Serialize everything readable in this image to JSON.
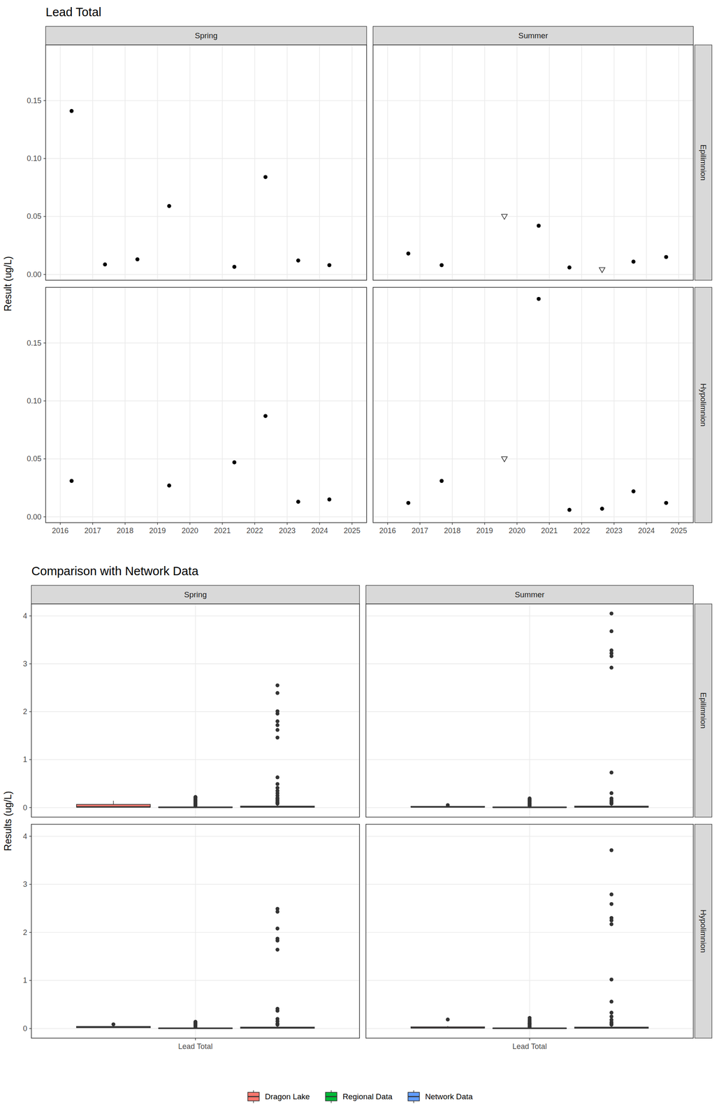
{
  "chart_data": [
    {
      "type": "scatter",
      "title": "Lead Total",
      "y_label": "Result (ug/L)",
      "columns": [
        "Spring",
        "Summer"
      ],
      "rows": [
        "Epilimnion",
        "Hypolimnion"
      ],
      "xlim": [
        2015.55,
        2025.45
      ],
      "xticks": [
        2016,
        2017,
        2018,
        2019,
        2020,
        2021,
        2022,
        2023,
        2024,
        2025
      ],
      "ylim": [
        -0.005,
        0.198
      ],
      "yticks": [
        {
          "value": 0,
          "label": "0.00"
        },
        {
          "value": 0.05,
          "label": "0.05"
        },
        {
          "value": 0.1,
          "label": "0.10"
        },
        {
          "value": 0.15,
          "label": "0.15"
        }
      ],
      "grid": true,
      "panels": [
        {
          "series": [
            {
              "marker": "circle",
              "color": "#000000",
              "x": [
                2016.35,
                2017.38,
                2018.38,
                2019.36,
                2021.37,
                2022.33,
                2023.34,
                2024.3
              ],
              "values": [
                0.141,
                0.0086,
                0.013,
                0.059,
                0.0065,
                0.084,
                0.012,
                0.008
              ]
            }
          ]
        },
        {
          "series": [
            {
              "marker": "circle",
              "color": "#000000",
              "x": [
                2016.64,
                2017.67,
                2020.67,
                2021.62,
                2023.6,
                2024.61
              ],
              "values": [
                0.018,
                0.008,
                0.042,
                0.006,
                0.011,
                0.015
              ]
            },
            {
              "marker": "triangle",
              "color": "#333333",
              "x": [
                2019.61,
                2022.63
              ],
              "values": [
                0.05,
                0.004
              ]
            }
          ]
        },
        {
          "series": [
            {
              "marker": "circle",
              "color": "#000000",
              "x": [
                2016.35,
                2019.36,
                2021.37,
                2022.33,
                2023.34,
                2024.3
              ],
              "values": [
                0.031,
                0.027,
                0.047,
                0.087,
                0.013,
                0.015
              ]
            }
          ]
        },
        {
          "series": [
            {
              "marker": "circle",
              "color": "#000000",
              "x": [
                2016.64,
                2017.67,
                2020.67,
                2021.62,
                2022.63,
                2023.6,
                2024.61
              ],
              "values": [
                0.012,
                0.031,
                0.188,
                0.006,
                0.007,
                0.022,
                0.012
              ]
            },
            {
              "marker": "triangle",
              "color": "#333333",
              "x": [
                2019.61
              ],
              "values": [
                0.05
              ]
            }
          ]
        }
      ]
    },
    {
      "type": "box",
      "title": "Comparison with Network Data",
      "y_label": "Results (ug/L)",
      "columns": [
        "Spring",
        "Summer"
      ],
      "rows": [
        "Epilimnion",
        "Hypolimnion"
      ],
      "categories": [
        "Lead Total"
      ],
      "ylim": [
        -0.2,
        4.25
      ],
      "yticks": [
        0,
        1,
        2,
        3,
        4
      ],
      "grid": true,
      "legend": "bottom",
      "series": [
        {
          "name": "Dragon Lake",
          "color": "#F8766D",
          "boxes": [
            {
              "min": 0.006,
              "q1": 0.0085,
              "median": 0.0125,
              "q3": 0.065,
              "max": 0.141,
              "outliers": []
            },
            {
              "min": 0.004,
              "q1": 0.0075,
              "median": 0.013,
              "q3": 0.024,
              "max": 0.042,
              "outliers": [
                0.05
              ]
            },
            {
              "min": 0.013,
              "q1": 0.018,
              "median": 0.029,
              "q3": 0.043,
              "max": 0.047,
              "outliers": [
                0.087
              ]
            },
            {
              "min": 0.006,
              "q1": 0.0105,
              "median": 0.017,
              "q3": 0.035,
              "max": 0.05,
              "outliers": [
                0.188
              ]
            }
          ]
        },
        {
          "name": "Regional Data",
          "color": "#00BA38",
          "boxes": [
            {
              "min": 0,
              "q1": 0.002,
              "median": 0.005,
              "q3": 0.01,
              "max": 0.022,
              "outliers": [
                0.03,
                0.05,
                0.07,
                0.09,
                0.11,
                0.13,
                0.15,
                0.17,
                0.19,
                0.21,
                0.22
              ]
            },
            {
              "min": 0,
              "q1": 0.002,
              "median": 0.005,
              "q3": 0.01,
              "max": 0.022,
              "outliers": [
                0.03,
                0.05,
                0.07,
                0.09,
                0.11,
                0.13,
                0.15,
                0.17,
                0.19
              ]
            },
            {
              "min": 0,
              "q1": 0.002,
              "median": 0.005,
              "q3": 0.01,
              "max": 0.022,
              "outliers": [
                0.03,
                0.05,
                0.07,
                0.09,
                0.11,
                0.13,
                0.14
              ]
            },
            {
              "min": 0,
              "q1": 0.002,
              "median": 0.005,
              "q3": 0.01,
              "max": 0.022,
              "outliers": [
                0.03,
                0.05,
                0.08,
                0.1,
                0.12,
                0.15,
                0.18,
                0.22
              ]
            }
          ]
        },
        {
          "name": "Network Data",
          "color": "#619CFF",
          "boxes": [
            {
              "min": 0,
              "q1": 0.005,
              "median": 0.015,
              "q3": 0.03,
              "max": 0.065,
              "outliers": [
                0.08,
                0.1,
                0.12,
                0.15,
                0.18,
                0.2,
                0.25,
                0.3,
                0.35,
                0.41,
                0.49,
                0.63,
                1.46,
                1.62,
                1.72,
                1.8,
                1.96,
                2.01,
                2.39,
                2.55
              ]
            },
            {
              "min": 0,
              "q1": 0.005,
              "median": 0.015,
              "q3": 0.03,
              "max": 0.065,
              "outliers": [
                0.08,
                0.1,
                0.12,
                0.15,
                0.19,
                0.3,
                0.73,
                2.92,
                3.16,
                3.22,
                3.28,
                3.68,
                4.05
              ]
            },
            {
              "min": 0,
              "q1": 0.005,
              "median": 0.015,
              "q3": 0.03,
              "max": 0.065,
              "outliers": [
                0.08,
                0.1,
                0.15,
                0.2,
                0.37,
                0.41,
                1.64,
                1.83,
                1.87,
                2.08,
                2.43,
                2.49
              ]
            },
            {
              "min": 0,
              "q1": 0.005,
              "median": 0.015,
              "q3": 0.03,
              "max": 0.065,
              "outliers": [
                0.08,
                0.1,
                0.13,
                0.18,
                0.25,
                0.33,
                0.56,
                1.02,
                2.17,
                2.25,
                2.3,
                2.59,
                2.79,
                3.71
              ]
            }
          ]
        }
      ]
    }
  ]
}
